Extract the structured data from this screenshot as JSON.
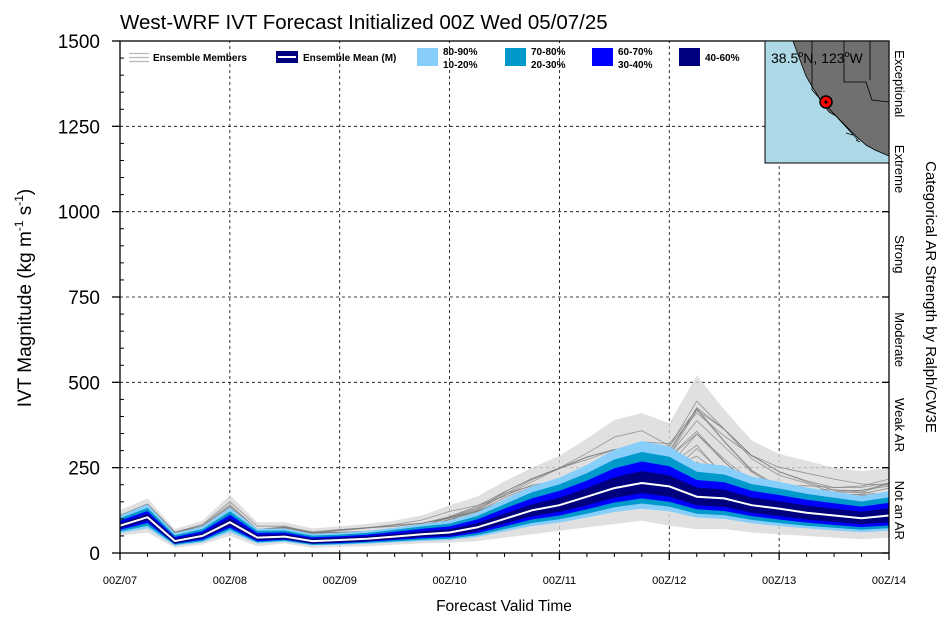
{
  "chart_data": {
    "type": "area",
    "title": "West-WRF IVT Forecast Initialized 00Z Wed 05/07/25",
    "xlabel": "Forecast Valid Time",
    "ylabel": "IVT Magnitude (kg m-1 s-1)",
    "ylabel_parts": {
      "main": "IVT Magnitude (kg m",
      "exp1": "-1",
      "mid": " s",
      "exp2": "-1",
      "end": ")"
    },
    "right_label": "Categorical AR Strength by Ralph/CW3E",
    "ylim": [
      0,
      1500
    ],
    "y_ticks": [
      0,
      250,
      500,
      750,
      1000,
      1250,
      1500
    ],
    "x_ticks": [
      "00Z/07",
      "00Z/08",
      "00Z/09",
      "00Z/10",
      "00Z/11",
      "00Z/12",
      "00Z/13",
      "00Z/14"
    ],
    "xlim_hours": [
      0,
      168
    ],
    "grid": true,
    "legend_position": "top",
    "legend": [
      {
        "label": "Ensemble Members",
        "kind": "lines",
        "color": "#b8b8b8"
      },
      {
        "label": "Ensemble Mean (M)",
        "kind": "mean",
        "color": "#00007f"
      },
      {
        "label": "80-90%",
        "label2": "10-20%",
        "kind": "swatch",
        "color": "#87cefa"
      },
      {
        "label": "70-80%",
        "label2": "20-30%",
        "kind": "swatch",
        "color": "#0099cc"
      },
      {
        "label": "60-70%",
        "label2": "30-40%",
        "kind": "swatch",
        "color": "#0000ff"
      },
      {
        "label": "40-60%",
        "kind": "swatch",
        "color": "#00007f"
      }
    ],
    "categories": [
      {
        "label": "Not an AR",
        "range": [
          0,
          250
        ]
      },
      {
        "label": "Weak AR",
        "range": [
          250,
          500
        ]
      },
      {
        "label": "Moderate",
        "range": [
          500,
          750
        ]
      },
      {
        "label": "Strong",
        "range": [
          750,
          1000
        ]
      },
      {
        "label": "Extreme",
        "range": [
          1000,
          1250
        ]
      },
      {
        "label": "Exceptional",
        "range": [
          1250,
          1500
        ]
      }
    ],
    "location": "38.5°N, 123°W",
    "location_parts": {
      "lat": "38.5",
      "lat_hem": "N, ",
      "lon": "123",
      "lon_hem": "W"
    },
    "hours": [
      0,
      6,
      12,
      18,
      24,
      30,
      36,
      42,
      48,
      54,
      60,
      66,
      72,
      78,
      84,
      90,
      96,
      102,
      108,
      114,
      120,
      126,
      132,
      138,
      144,
      150,
      156,
      162,
      168
    ],
    "series": {
      "mean": [
        80,
        105,
        35,
        50,
        90,
        45,
        48,
        35,
        38,
        42,
        48,
        55,
        60,
        75,
        100,
        125,
        140,
        165,
        190,
        205,
        195,
        165,
        160,
        140,
        130,
        118,
        110,
        102,
        110
      ],
      "p40_60": [
        [
          72,
          88
        ],
        [
          95,
          115
        ],
        [
          30,
          42
        ],
        [
          43,
          58
        ],
        [
          80,
          102
        ],
        [
          38,
          53
        ],
        [
          42,
          55
        ],
        [
          30,
          41
        ],
        [
          32,
          44
        ],
        [
          36,
          49
        ],
        [
          41,
          56
        ],
        [
          47,
          64
        ],
        [
          51,
          70
        ],
        [
          64,
          87
        ],
        [
          86,
          115
        ],
        [
          108,
          143
        ],
        [
          120,
          162
        ],
        [
          140,
          190
        ],
        [
          162,
          222
        ],
        [
          175,
          240
        ],
        [
          165,
          228
        ],
        [
          140,
          192
        ],
        [
          135,
          186
        ],
        [
          118,
          163
        ],
        [
          108,
          152
        ],
        [
          98,
          139
        ],
        [
          91,
          130
        ],
        [
          84,
          121
        ],
        [
          90,
          131
        ]
      ],
      "p30_70": [
        [
          68,
          95
        ],
        [
          88,
          123
        ],
        [
          27,
          47
        ],
        [
          39,
          64
        ],
        [
          74,
          112
        ],
        [
          34,
          59
        ],
        [
          39,
          60
        ],
        [
          27,
          46
        ],
        [
          29,
          49
        ],
        [
          33,
          54
        ],
        [
          38,
          62
        ],
        [
          43,
          71
        ],
        [
          47,
          78
        ],
        [
          58,
          98
        ],
        [
          78,
          130
        ],
        [
          98,
          160
        ],
        [
          110,
          182
        ],
        [
          128,
          212
        ],
        [
          148,
          248
        ],
        [
          160,
          268
        ],
        [
          150,
          254
        ],
        [
          128,
          214
        ],
        [
          123,
          207
        ],
        [
          108,
          182
        ],
        [
          98,
          170
        ],
        [
          89,
          156
        ],
        [
          82,
          146
        ],
        [
          76,
          136
        ],
        [
          81,
          147
        ]
      ],
      "p20_80": [
        [
          63,
          102
        ],
        [
          80,
          132
        ],
        [
          24,
          52
        ],
        [
          35,
          70
        ],
        [
          68,
          122
        ],
        [
          31,
          65
        ],
        [
          36,
          66
        ],
        [
          24,
          51
        ],
        [
          26,
          54
        ],
        [
          30,
          59
        ],
        [
          34,
          68
        ],
        [
          39,
          78
        ],
        [
          42,
          86
        ],
        [
          52,
          108
        ],
        [
          70,
          143
        ],
        [
          88,
          178
        ],
        [
          99,
          201
        ],
        [
          115,
          234
        ],
        [
          134,
          274
        ],
        [
          145,
          296
        ],
        [
          136,
          282
        ],
        [
          115,
          238
        ],
        [
          111,
          230
        ],
        [
          97,
          202
        ],
        [
          88,
          189
        ],
        [
          80,
          173
        ],
        [
          74,
          162
        ],
        [
          68,
          151
        ],
        [
          73,
          163
        ]
      ],
      "p10_90": [
        [
          58,
          110
        ],
        [
          72,
          143
        ],
        [
          21,
          58
        ],
        [
          31,
          78
        ],
        [
          61,
          133
        ],
        [
          28,
          71
        ],
        [
          33,
          72
        ],
        [
          22,
          56
        ],
        [
          24,
          59
        ],
        [
          27,
          65
        ],
        [
          31,
          74
        ],
        [
          35,
          85
        ],
        [
          38,
          95
        ],
        [
          47,
          119
        ],
        [
          63,
          158
        ],
        [
          79,
          196
        ],
        [
          89,
          221
        ],
        [
          104,
          258
        ],
        [
          120,
          303
        ],
        [
          130,
          328
        ],
        [
          122,
          312
        ],
        [
          104,
          264
        ],
        [
          100,
          256
        ],
        [
          87,
          224
        ],
        [
          79,
          209
        ],
        [
          72,
          192
        ],
        [
          66,
          180
        ],
        [
          61,
          167
        ],
        [
          65,
          181
        ]
      ],
      "envelope": [
        [
          50,
          125
        ],
        [
          60,
          160
        ],
        [
          15,
          70
        ],
        [
          25,
          95
        ],
        [
          50,
          170
        ],
        [
          20,
          90
        ],
        [
          28,
          90
        ],
        [
          15,
          72
        ],
        [
          18,
          78
        ],
        [
          20,
          85
        ],
        [
          24,
          95
        ],
        [
          28,
          110
        ],
        [
          30,
          140
        ],
        [
          35,
          165
        ],
        [
          45,
          210
        ],
        [
          55,
          250
        ],
        [
          65,
          285
        ],
        [
          75,
          335
        ],
        [
          85,
          390
        ],
        [
          95,
          410
        ],
        [
          80,
          380
        ],
        [
          70,
          520
        ],
        [
          70,
          420
        ],
        [
          60,
          330
        ],
        [
          55,
          290
        ],
        [
          50,
          270
        ],
        [
          45,
          250
        ],
        [
          40,
          240
        ],
        [
          45,
          250
        ]
      ]
    }
  }
}
